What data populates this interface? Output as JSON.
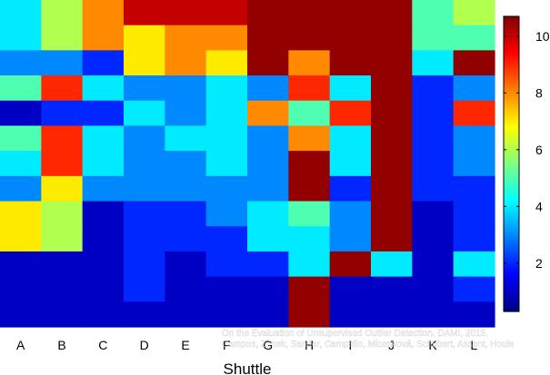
{
  "chart_data": {
    "type": "heatmap",
    "title": "",
    "xlabel": "Shuttle",
    "ylabel": "",
    "categories": [
      "A",
      "B",
      "C",
      "D",
      "E",
      "F",
      "G",
      "H",
      "I",
      "J",
      "K",
      "L"
    ],
    "colorbar": {
      "min": 0.3,
      "max": 10.7,
      "ticks": [
        2,
        4,
        6,
        8,
        10
      ],
      "colormap": "jet"
    },
    "matrix": [
      [
        4,
        6,
        8,
        10,
        10,
        10,
        10.5,
        10.5,
        10.5,
        10.5,
        5,
        6
      ],
      [
        4,
        6,
        8,
        7,
        8,
        8,
        10.5,
        10.5,
        10.5,
        10.5,
        5,
        5
      ],
      [
        3,
        3,
        2,
        7,
        8,
        7,
        10.5,
        8,
        10.5,
        10.5,
        4,
        10.5
      ],
      [
        5,
        9,
        4,
        3,
        3,
        4,
        3,
        9,
        4,
        10.5,
        2,
        3
      ],
      [
        1,
        2,
        2,
        4,
        3,
        4,
        8,
        5,
        9,
        10.5,
        2,
        9
      ],
      [
        5,
        9,
        4,
        3,
        4,
        4,
        3,
        8,
        4,
        10.5,
        2,
        3
      ],
      [
        4,
        9,
        4,
        3,
        3,
        4,
        3,
        10.5,
        4,
        10.5,
        2,
        3
      ],
      [
        3,
        7,
        3,
        3,
        3,
        3,
        3,
        10.5,
        2,
        10.5,
        2,
        2
      ],
      [
        7,
        6,
        1,
        2,
        2,
        3,
        4,
        5,
        3,
        10.5,
        1,
        2
      ],
      [
        7,
        6,
        1,
        2,
        2,
        2,
        4,
        4,
        3,
        10.5,
        1,
        2
      ],
      [
        1,
        1,
        1,
        2,
        1,
        2,
        2,
        4,
        10.5,
        4,
        1,
        4
      ],
      [
        1,
        1,
        1,
        2,
        1,
        1,
        1,
        10.5,
        1,
        1,
        1,
        2
      ],
      [
        1,
        1,
        1,
        1,
        1,
        1,
        1,
        10.5,
        1,
        1,
        1,
        1
      ]
    ]
  },
  "watermark": {
    "line1": "On the Evaluation of Unsupervised Outlier Detection. DAMI, 2015.",
    "line2": "Campos, Zimek, Sander, Campello, Micenková, Schubert, Assent, Houle"
  }
}
